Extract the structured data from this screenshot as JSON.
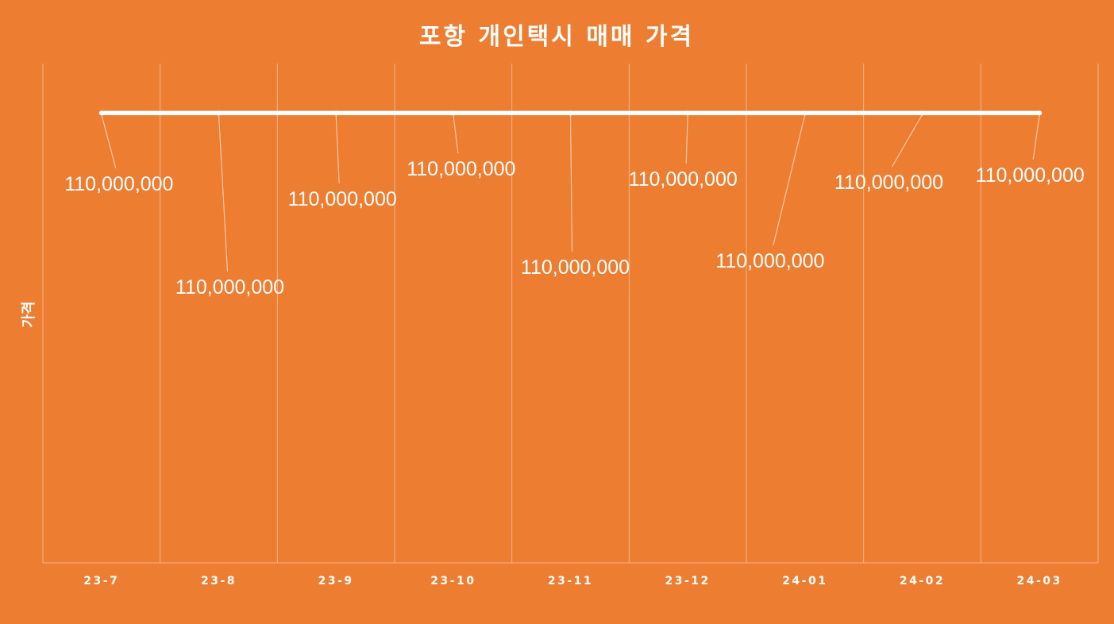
{
  "chart_data": {
    "type": "line",
    "title": "포항 개인택시 매매 가격",
    "xlabel": "",
    "ylabel": "가격",
    "categories": [
      "23-7",
      "23-8",
      "23-9",
      "23-10",
      "23-11",
      "23-12",
      "24-01",
      "24-02",
      "24-03"
    ],
    "series": [
      {
        "values": [
          110000000,
          110000000,
          110000000,
          110000000,
          110000000,
          110000000,
          110000000,
          110000000,
          110000000
        ],
        "data_labels": [
          "110,000,000",
          "110,000,000",
          "110,000,000",
          "110,000,000",
          "110,000,000",
          "110,000,000",
          "110,000,000",
          "110,000,000",
          "110,000,000"
        ],
        "color": "#FFFFFF"
      }
    ],
    "grid": true,
    "legend": "none",
    "background_color": "#ED7D31",
    "gridline_color": "#F6B48A"
  }
}
